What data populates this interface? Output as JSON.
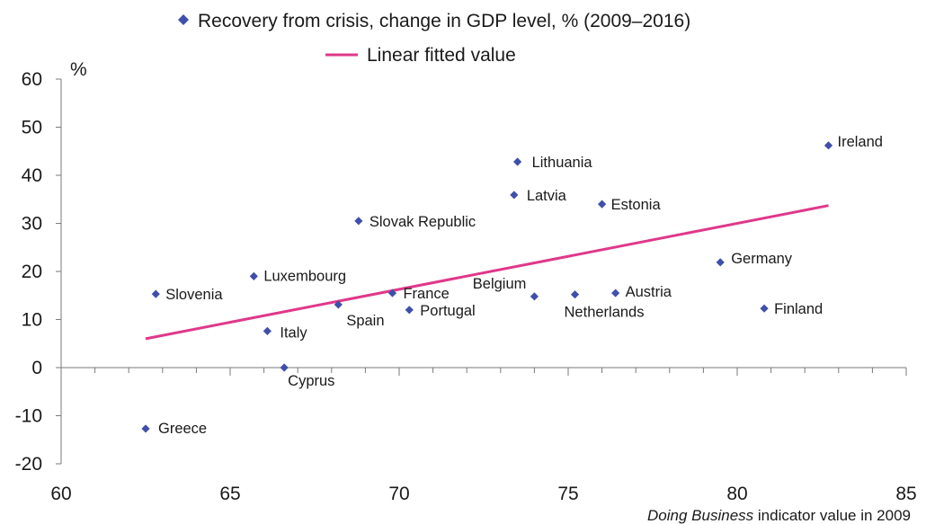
{
  "chart_data": {
    "type": "scatter",
    "legend": {
      "placement": "top-center",
      "series_label": "Recovery from crisis, change in GDP level, % (2009–2016)",
      "fit_label": "Linear fitted value"
    },
    "ylabel": "%",
    "xlabel_italic": "Doing Business",
    "xlabel_rest": " indicator value in 2009",
    "xlim": [
      60,
      85
    ],
    "ylim": [
      -20,
      60
    ],
    "xticks": [
      60,
      65,
      70,
      75,
      80,
      85
    ],
    "yticks": [
      60,
      50,
      40,
      30,
      20,
      10,
      0,
      -10,
      -20
    ],
    "grid": false,
    "colors": {
      "points": "#3f4faa",
      "fit_line": "#e0388a",
      "axis": "#7a7a7a"
    },
    "points": [
      {
        "label": "Greece",
        "x": 62.5,
        "y": -12.7
      },
      {
        "label": "Slovenia",
        "x": 62.8,
        "y": 15.3
      },
      {
        "label": "Luxembourg",
        "x": 65.7,
        "y": 19.0
      },
      {
        "label": "Italy",
        "x": 66.1,
        "y": 7.6
      },
      {
        "label": "Cyprus",
        "x": 66.6,
        "y": 0.0
      },
      {
        "label": "Spain",
        "x": 68.2,
        "y": 13.1
      },
      {
        "label": "Slovak Republic",
        "x": 68.8,
        "y": 30.5
      },
      {
        "label": "France",
        "x": 69.8,
        "y": 15.5
      },
      {
        "label": "Portugal",
        "x": 70.3,
        "y": 12.0
      },
      {
        "label": "Latvia",
        "x": 73.4,
        "y": 35.9
      },
      {
        "label": "Lithuania",
        "x": 73.5,
        "y": 42.8
      },
      {
        "label": "Belgium",
        "x": 74.0,
        "y": 14.8
      },
      {
        "label": "Netherlands",
        "x": 75.2,
        "y": 15.2
      },
      {
        "label": "Estonia",
        "x": 76.0,
        "y": 34.0
      },
      {
        "label": "Austria",
        "x": 76.4,
        "y": 15.5
      },
      {
        "label": "Germany",
        "x": 79.5,
        "y": 21.9
      },
      {
        "label": "Finland",
        "x": 80.8,
        "y": 12.3
      },
      {
        "label": "Ireland",
        "x": 82.7,
        "y": 46.2
      }
    ],
    "fit_line": {
      "x": [
        62.5,
        82.7
      ],
      "y": [
        6.0,
        33.7
      ]
    }
  }
}
